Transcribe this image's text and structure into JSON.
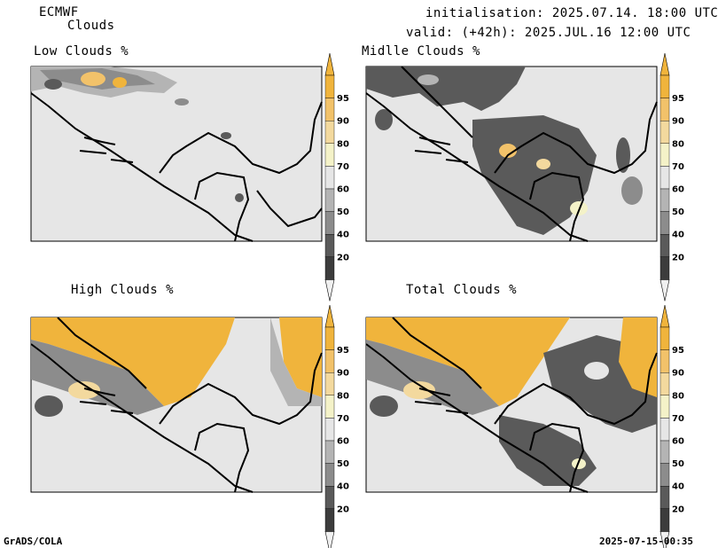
{
  "header": {
    "model": "ECMWF",
    "product": "Clouds",
    "init_line": "initialisation: 2025.07.14. 18:00 UTC",
    "valid_line": "valid: (+42h): 2025.JUL.16 12:00 UTC"
  },
  "panels": [
    {
      "id": "low",
      "title": "Low Clouds %"
    },
    {
      "id": "mid",
      "title": "Midlle Clouds %"
    },
    {
      "id": "high",
      "title": "High Clouds %"
    },
    {
      "id": "total",
      "title": "Total Clouds %"
    }
  ],
  "colorbar": {
    "levels": [
      "95",
      "90",
      "80",
      "70",
      "60",
      "50",
      "40",
      "20"
    ],
    "colors": {
      "c95": "#f0b43c",
      "c90": "#f2c26a",
      "c80": "#f3d99e",
      "c70": "#f4f2c8",
      "c60": "#e6e6e6",
      "c50": "#b4b4b4",
      "c40": "#8c8c8c",
      "c30": "#5a5a5a",
      "c20": "#3c3c3c",
      "bottom": "#f0f0f0"
    }
  },
  "footer": {
    "left": "GrADS/COLA",
    "right": "2025-07-15-00:35"
  },
  "map_colors": {
    "background": "#e6e6e6",
    "border": "#000000"
  }
}
